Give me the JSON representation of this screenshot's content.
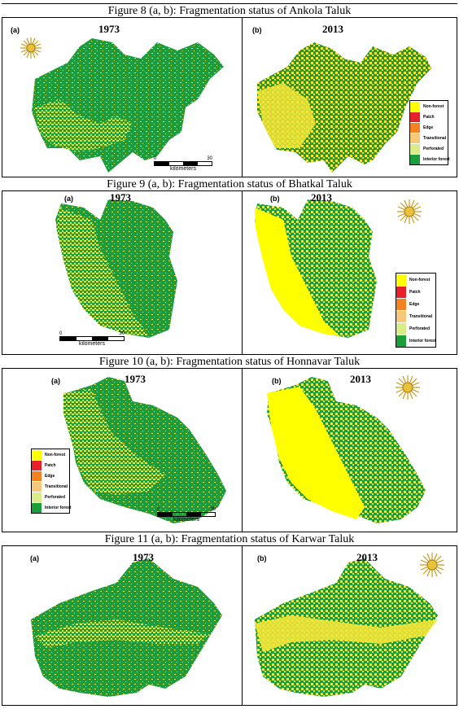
{
  "figures": [
    {
      "caption": "Figure 8 (a, b): Fragmentation status of Ankola Taluk",
      "panels": [
        {
          "label": "(a)",
          "year": "1973"
        },
        {
          "label": "(b)",
          "year": "2013"
        }
      ],
      "scale": {
        "start": "0",
        "end": "30",
        "unit": "kilometers"
      }
    },
    {
      "caption": "Figure 9 (a, b): Fragmentation status of Bhatkal Taluk",
      "panels": [
        {
          "label": "(a)",
          "year": "1973"
        },
        {
          "label": "(b)",
          "year": "2013"
        }
      ],
      "scale": {
        "start": "0",
        "end": "30",
        "unit": "kilometers"
      }
    },
    {
      "caption": "Figure 10 (a, b): Fragmentation status of  Honnavar Taluk",
      "panels": [
        {
          "label": "(a)",
          "year": "1973"
        },
        {
          "label": "(b)",
          "year": "2013"
        }
      ],
      "scale": {
        "start": "0",
        "end": "30",
        "unit": "kilometers"
      }
    },
    {
      "caption": "Figure 11 (a, b): Fragmentation status of Karwar Taluk",
      "panels": [
        {
          "label": "(a)",
          "year": "1973"
        },
        {
          "label": "(b)",
          "year": "2013"
        }
      ]
    }
  ],
  "legend": [
    {
      "label": "Non-forest",
      "color": "#ffff00"
    },
    {
      "label": "Patch",
      "color": "#e8202a"
    },
    {
      "label": "Edge",
      "color": "#f58220"
    },
    {
      "label": "Transitional",
      "color": "#f6c97a"
    },
    {
      "label": "Perforated",
      "color": "#d9ec8a"
    },
    {
      "label": "Interior forest",
      "color": "#1a9e3a"
    }
  ],
  "legend_bhatkal": [
    {
      "label": "Non-forest",
      "color": "#ffff00"
    },
    {
      "label": "Patch",
      "color": "#e8202a"
    },
    {
      "label": "Edge",
      "color": "#f58220"
    },
    {
      "label": "Transitional",
      "color": "#f6c97a"
    },
    {
      "label": "Perforated",
      "color": "#d9ec8a"
    },
    {
      "label": "Interior forest",
      "color": "#1a9e3a"
    }
  ],
  "colors": {
    "forest": "#1e9b3c",
    "nonforest": "#f2e63a",
    "yellow": "#ffff00"
  },
  "icons": {
    "compass": "sun-compass-icon"
  }
}
